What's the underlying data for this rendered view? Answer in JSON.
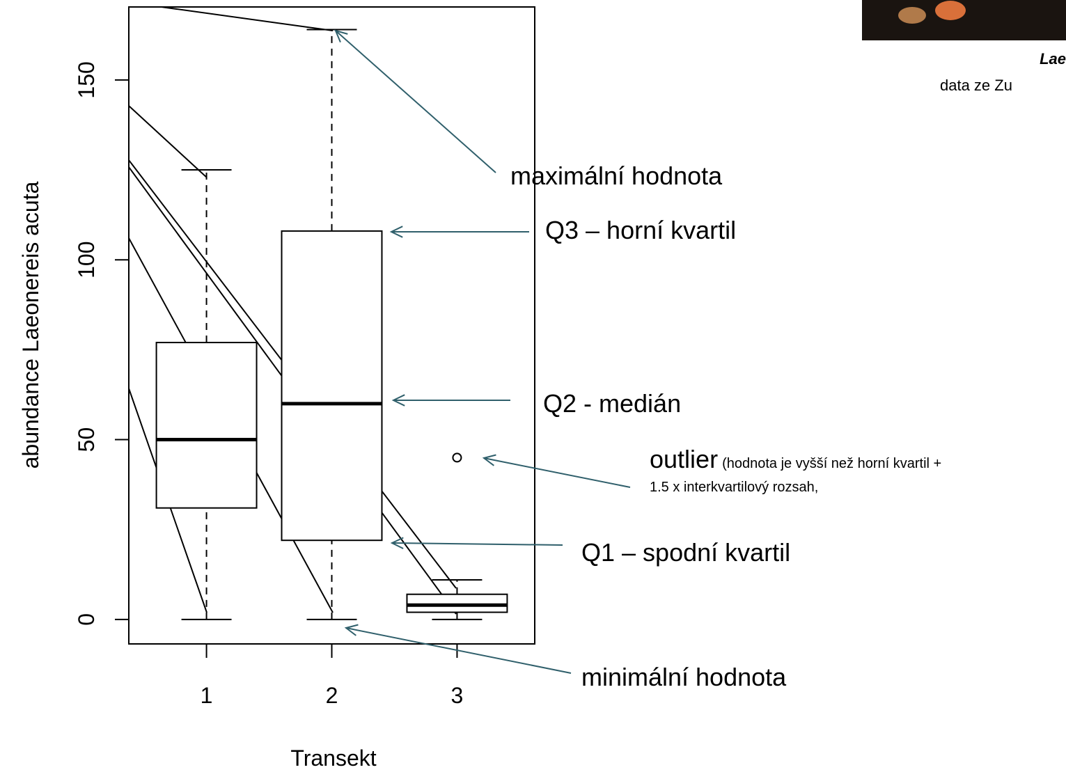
{
  "chart_data": {
    "type": "boxplot",
    "categories": [
      "1",
      "2",
      "3"
    ],
    "boxes": [
      {
        "min": 0,
        "q1": 31,
        "median": 50,
        "q3": 77,
        "max": 125
      },
      {
        "min": 0,
        "q1": 22,
        "median": 60,
        "q3": 108,
        "max": 164
      },
      {
        "min": 0,
        "q1": 2,
        "median": 4,
        "q3": 7,
        "max": 11,
        "outliers": [
          45
        ]
      }
    ],
    "color": "#000000",
    "xlim": [
      0.38,
      3.62
    ],
    "ylim": [
      -6.8,
      170.3
    ],
    "yticks": [
      0,
      50,
      100,
      150
    ],
    "x_label": "Transekt",
    "y_label": "abundance Laeonereis acuta",
    "annotation_color": "#2f5f6b",
    "annotations": [
      {
        "text": "maximální hodnota"
      },
      {
        "text": "Q3 – horní kvartil"
      },
      {
        "text": "Q2 - medián"
      },
      {
        "text": "outlier",
        "note": "(hodnota je vyšší než horní kvartil +",
        "note2": "1.5 x interkvartilový rozsah,"
      },
      {
        "text": "Q1 – spodní kvartil"
      },
      {
        "text": "minimální hodnota"
      }
    ],
    "caption": {
      "species": "Lae",
      "source": "data ze Zu"
    }
  }
}
